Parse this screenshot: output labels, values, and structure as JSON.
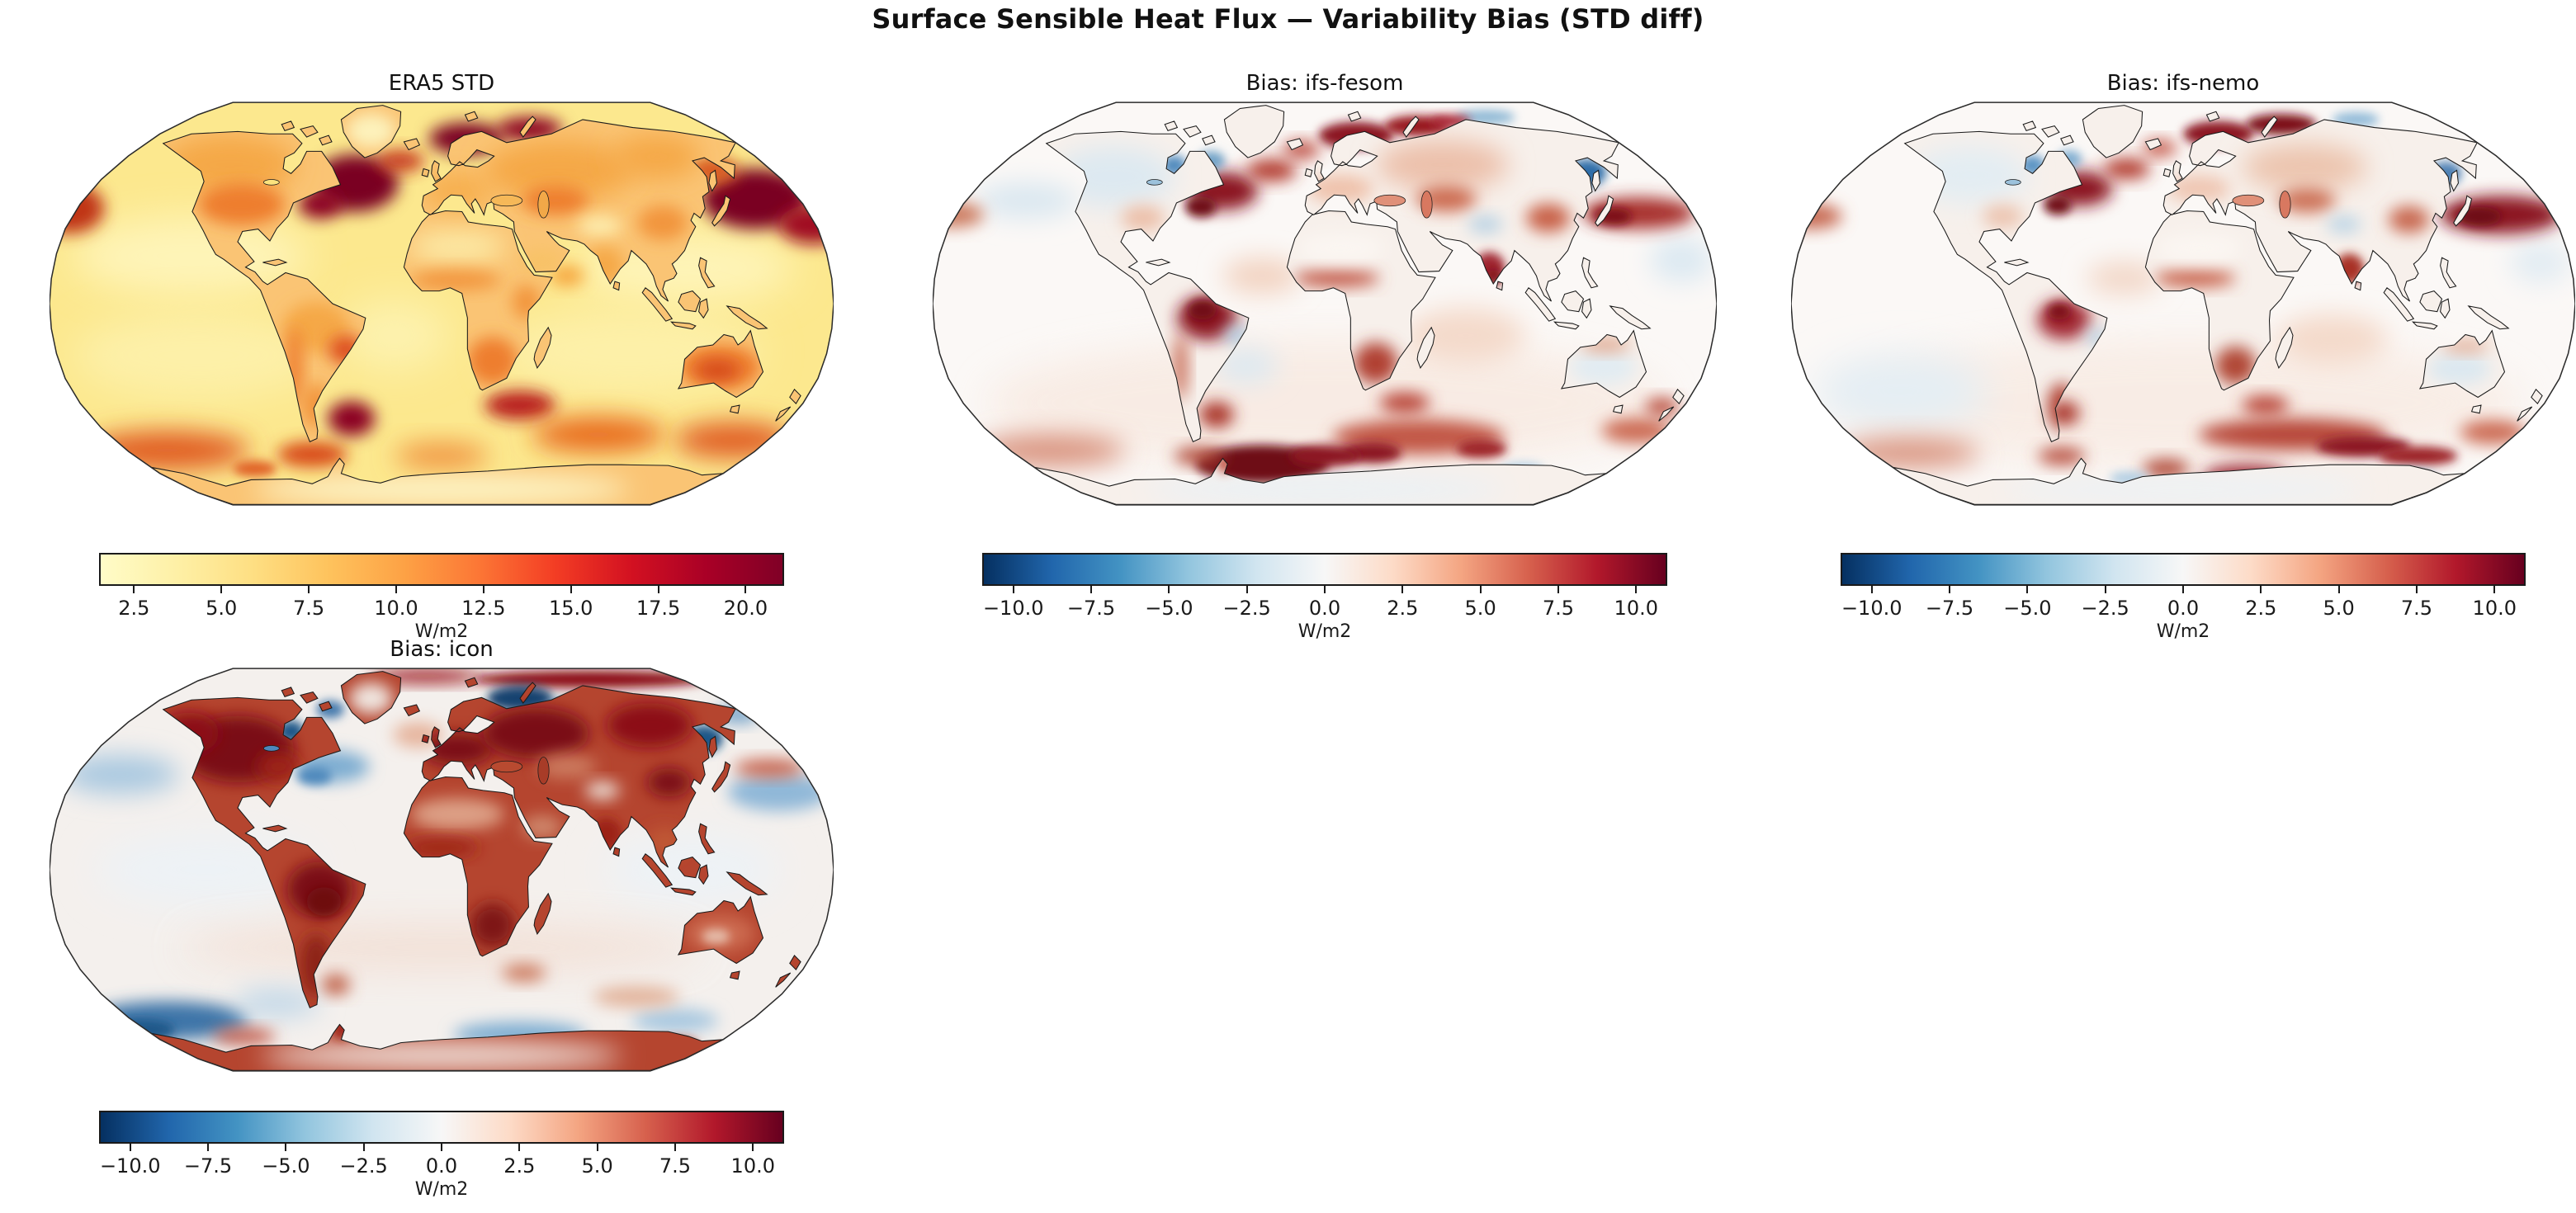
{
  "figure": {
    "suptitle": "Surface Sensible Heat Flux — Variability Bias (STD diff)"
  },
  "panels": [
    {
      "id": "era5",
      "title": "ERA5 STD",
      "colorbar": {
        "unit": "W/m2",
        "colormap": "YlOrRd",
        "vmin": 1.5,
        "vmax": 21.1,
        "ticks": [
          {
            "label": "2.5",
            "value": 2.5
          },
          {
            "label": "5.0",
            "value": 5.0
          },
          {
            "label": "7.5",
            "value": 7.5
          },
          {
            "label": "10.0",
            "value": 10.0
          },
          {
            "label": "12.5",
            "value": 12.5
          },
          {
            "label": "15.0",
            "value": 15.0
          },
          {
            "label": "17.5",
            "value": 17.5
          },
          {
            "label": "20.0",
            "value": 20.0
          }
        ],
        "stops": [
          "#FFFCC8",
          "#FEF0A6",
          "#FEDF83",
          "#FEC35D",
          "#FDA245",
          "#FC7635",
          "#F33D24",
          "#D31121",
          "#A90026",
          "#800026"
        ]
      }
    },
    {
      "id": "ifs-fesom",
      "title": "Bias: ifs-fesom",
      "colorbar": {
        "unit": "W/m2",
        "colormap": "RdBu_r",
        "vmin": -11,
        "vmax": 11,
        "ticks": [
          {
            "label": "−10.0",
            "value": -10.0
          },
          {
            "label": "−7.5",
            "value": -7.5
          },
          {
            "label": "−5.0",
            "value": -5.0
          },
          {
            "label": "−2.5",
            "value": -2.5
          },
          {
            "label": "0.0",
            "value": 0.0
          },
          {
            "label": "2.5",
            "value": 2.5
          },
          {
            "label": "5.0",
            "value": 5.0
          },
          {
            "label": "7.5",
            "value": 7.5
          },
          {
            "label": "10.0",
            "value": 10.0
          }
        ],
        "stops": [
          "#053061",
          "#2166AC",
          "#4393C3",
          "#92C5DE",
          "#D1E5F0",
          "#F7F7F7",
          "#FDDBC7",
          "#F4A582",
          "#D6604D",
          "#B2182B",
          "#67001F"
        ]
      }
    },
    {
      "id": "ifs-nemo",
      "title": "Bias: ifs-nemo",
      "colorbar": {
        "unit": "W/m2",
        "colormap": "RdBu_r",
        "vmin": -11,
        "vmax": 11,
        "ticks": [
          {
            "label": "−10.0",
            "value": -10.0
          },
          {
            "label": "−7.5",
            "value": -7.5
          },
          {
            "label": "−5.0",
            "value": -5.0
          },
          {
            "label": "−2.5",
            "value": -2.5
          },
          {
            "label": "0.0",
            "value": 0.0
          },
          {
            "label": "2.5",
            "value": 2.5
          },
          {
            "label": "5.0",
            "value": 5.0
          },
          {
            "label": "7.5",
            "value": 7.5
          },
          {
            "label": "10.0",
            "value": 10.0
          }
        ],
        "stops": [
          "#053061",
          "#2166AC",
          "#4393C3",
          "#92C5DE",
          "#D1E5F0",
          "#F7F7F7",
          "#FDDBC7",
          "#F4A582",
          "#D6604D",
          "#B2182B",
          "#67001F"
        ]
      }
    },
    {
      "id": "icon",
      "title": "Bias: icon",
      "colorbar": {
        "unit": "W/m2",
        "colormap": "RdBu_r",
        "vmin": -11,
        "vmax": 11,
        "ticks": [
          {
            "label": "−10.0",
            "value": -10.0
          },
          {
            "label": "−7.5",
            "value": -7.5
          },
          {
            "label": "−5.0",
            "value": -5.0
          },
          {
            "label": "−2.5",
            "value": -2.5
          },
          {
            "label": "0.0",
            "value": 0.0
          },
          {
            "label": "2.5",
            "value": 2.5
          },
          {
            "label": "5.0",
            "value": 5.0
          },
          {
            "label": "7.5",
            "value": 7.5
          },
          {
            "label": "10.0",
            "value": 10.0
          }
        ],
        "stops": [
          "#053061",
          "#2166AC",
          "#4393C3",
          "#92C5DE",
          "#D1E5F0",
          "#F7F7F7",
          "#FDDBC7",
          "#F4A582",
          "#D6604D",
          "#B2182B",
          "#67001F"
        ]
      }
    }
  ],
  "chart_data": {
    "type": "heatmap",
    "title": "Surface Sensible Heat Flux — Variability Bias (STD diff)",
    "projection": "Robinson",
    "variable": "Surface sensible heat flux temporal standard deviation",
    "units": "W/m2",
    "layout": "2 rows x 3 columns of map panels; 4 panels used (row1: ERA5 STD, Bias: ifs-fesom, Bias: ifs-nemo; row2: Bias: icon)",
    "panels": [
      {
        "title": "ERA5 STD",
        "colormap": "YlOrRd",
        "value_range": [
          1.5,
          21.1
        ],
        "colorbar_ticks": [
          2.5,
          5.0,
          7.5,
          10.0,
          12.5,
          15.0,
          17.5,
          20.0
        ],
        "notable_features": "Maxima >20 W/m2 over Gulf Stream / North Atlantic, Nordic-Barents Seas and Kuroshio extension; 10-15 W/m2 over Southern Ocean storm tracks, Agulhas and Brazil-Malvinas confluence; interior continents 5-10 W/m2 (Australia, central Asia, the Americas more orange); minima 2-5 W/m2 over tropical oceans."
      },
      {
        "title": "Bias: ifs-fesom",
        "colormap": "RdBu_r",
        "value_range": [
          -11,
          11
        ],
        "colorbar_ticks": [
          -10.0,
          -7.5,
          -5.0,
          -2.5,
          0.0,
          2.5,
          5.0,
          7.5,
          10.0
        ],
        "notable_features": "Mostly near zero; strong positive bias (>10 W/m2) over Gulf Stream, Norwegian-Barents Seas, Kuroshio, Amazonia, India and a large dark patch over the Weddell Sea / Antarctic coastal band; negative bias over Sea of Okhotsk, Hudson Bay and parts of the Arctic."
      },
      {
        "title": "Bias: ifs-nemo",
        "colormap": "RdBu_r",
        "value_range": [
          -11,
          11
        ],
        "colorbar_ticks": [
          -10.0,
          -7.5,
          -5.0,
          -2.5,
          0.0,
          2.5,
          5.0,
          7.5,
          10.0
        ],
        "notable_features": "Similar to ifs-fesom: positive bias over western boundary currents (Gulf Stream, Kuroshio), Barents Sea, Amazonia, India, Argentina and Southern Ocean streaks near 50-60S; weaker Weddell Sea signal; negative bias over Sea of Okhotsk, Hudson Bay, parts of Australia and the South Pacific."
      },
      {
        "title": "Bias: icon",
        "colormap": "RdBu_r",
        "value_range": [
          -11,
          11
        ],
        "colorbar_ticks": [
          -10.0,
          -7.5,
          -5.0,
          -2.5,
          0.0,
          2.5,
          5.0,
          7.5,
          10.0
        ],
        "notable_features": "Strong positive bias (dark red, ~10 W/m2) over nearly all land (Americas, Europe, Siberia, Africa, Amazonia darkest); negative bias (blue) over Kara/Barents shelf, Hudson Bay, Sea of Okhotsk, mid-latitude North Pacific/Atlantic bands and Southern Ocean; red band along the Arctic Ocean margin."
      }
    ]
  }
}
